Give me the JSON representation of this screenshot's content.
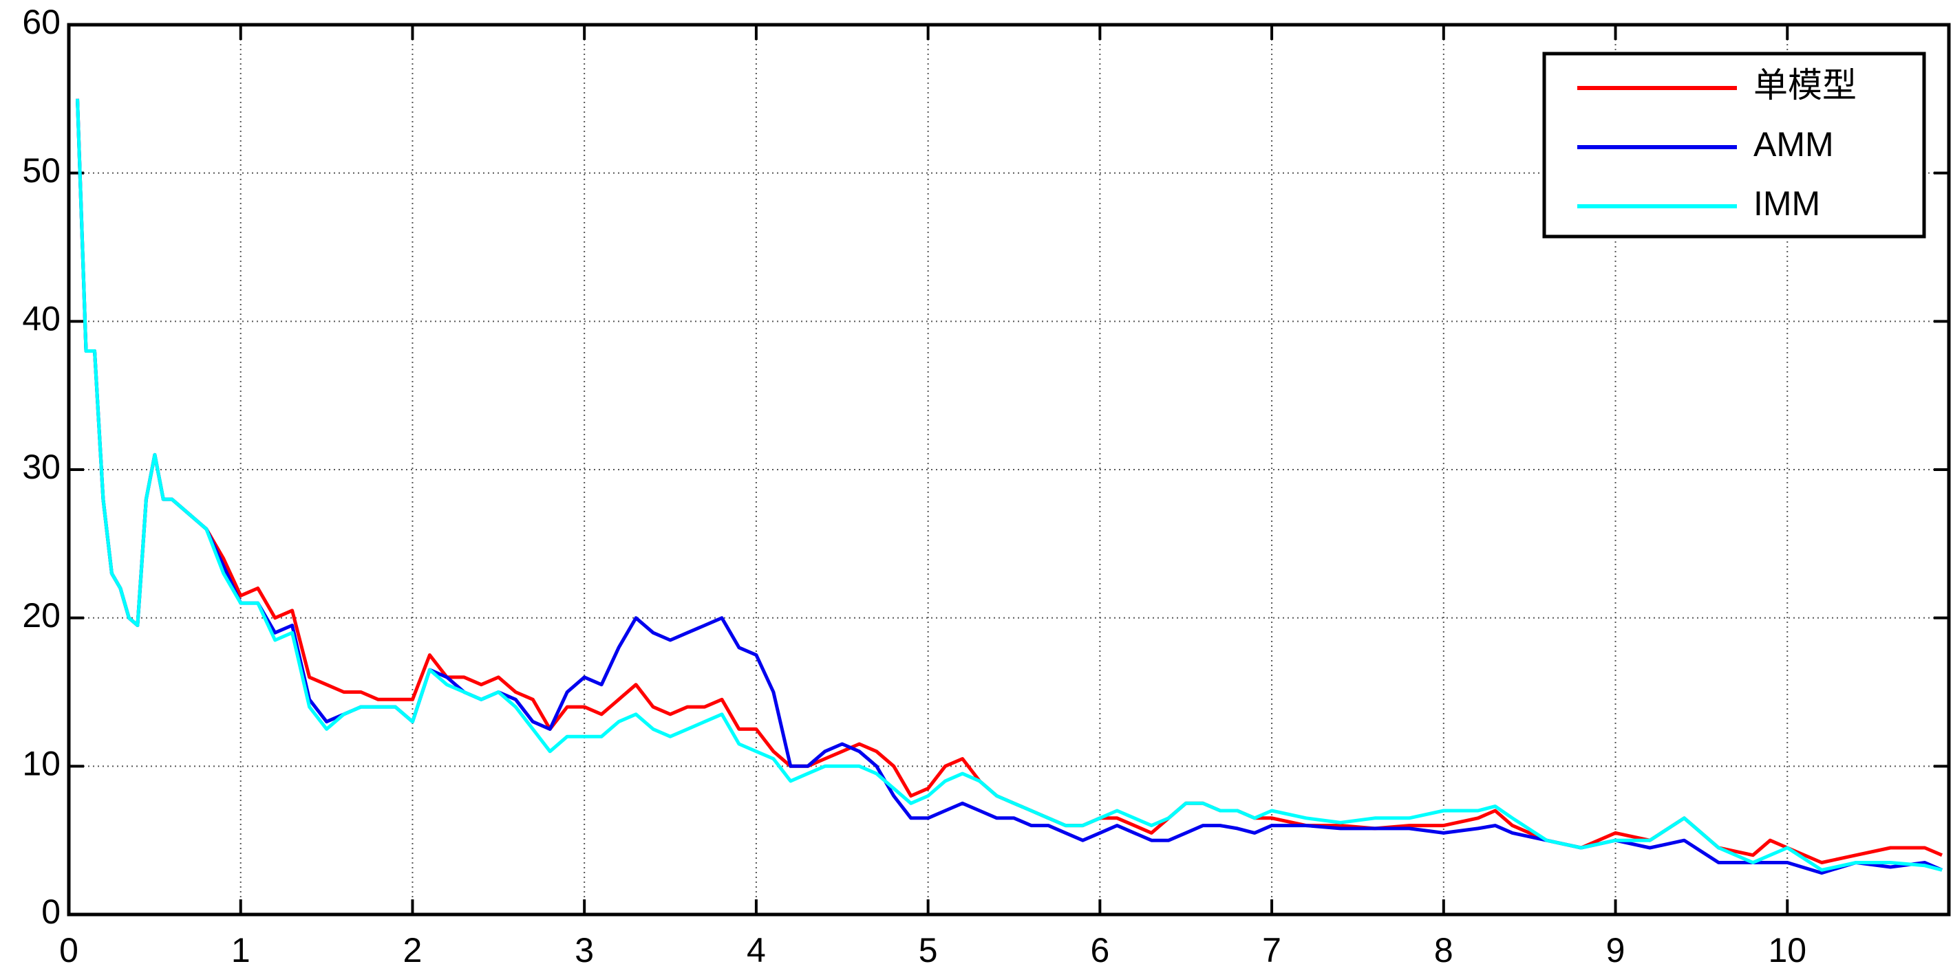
{
  "chart_data": {
    "type": "line",
    "x": [
      0.05,
      0.1,
      0.15,
      0.2,
      0.25,
      0.3,
      0.35,
      0.4,
      0.45,
      0.5,
      0.55,
      0.6,
      0.7,
      0.8,
      0.9,
      1.0,
      1.1,
      1.2,
      1.3,
      1.4,
      1.5,
      1.6,
      1.7,
      1.8,
      1.9,
      2.0,
      2.1,
      2.2,
      2.3,
      2.4,
      2.5,
      2.6,
      2.7,
      2.8,
      2.9,
      3.0,
      3.1,
      3.2,
      3.3,
      3.4,
      3.5,
      3.6,
      3.7,
      3.8,
      3.9,
      4.0,
      4.1,
      4.2,
      4.3,
      4.4,
      4.5,
      4.6,
      4.7,
      4.8,
      4.9,
      5.0,
      5.1,
      5.2,
      5.3,
      5.4,
      5.5,
      5.6,
      5.7,
      5.8,
      5.9,
      6.0,
      6.1,
      6.2,
      6.3,
      6.4,
      6.5,
      6.6,
      6.7,
      6.8,
      6.9,
      7.0,
      7.2,
      7.4,
      7.6,
      7.8,
      8.0,
      8.2,
      8.3,
      8.4,
      8.6,
      8.8,
      9.0,
      9.2,
      9.4,
      9.6,
      9.8,
      9.9,
      10.0,
      10.2,
      10.4,
      10.6,
      10.8,
      10.9
    ],
    "series": [
      {
        "name": "单模型",
        "color": "#ff0000",
        "values": [
          55,
          38,
          38,
          28,
          23,
          22,
          20,
          19.5,
          28,
          31,
          28,
          28,
          27,
          26,
          24,
          21.5,
          22,
          20,
          20.5,
          16,
          15.5,
          15,
          15,
          14.5,
          14.5,
          14.5,
          17.5,
          16,
          16,
          15.5,
          16,
          15,
          14.5,
          12.5,
          14,
          14,
          13.5,
          14.5,
          15.5,
          14,
          13.5,
          14,
          14,
          14.5,
          12.5,
          12.5,
          11,
          10,
          10,
          10.5,
          11,
          11.5,
          11,
          10,
          8,
          8.5,
          10,
          10.5,
          9,
          8,
          7.5,
          7,
          6.5,
          6,
          6,
          6.5,
          6.5,
          6,
          5.5,
          6.5,
          7.5,
          7.5,
          7,
          7,
          6.5,
          6.5,
          6,
          6,
          5.8,
          6,
          6,
          6.5,
          7,
          6,
          5,
          4.5,
          5.5,
          5,
          6.5,
          4.5,
          4,
          5,
          4.5,
          3.5,
          4,
          4.5,
          4.5,
          4
        ]
      },
      {
        "name": "AMM",
        "color": "#0000ee",
        "values": [
          55,
          38,
          38,
          28,
          23,
          22,
          20,
          19.5,
          28,
          31,
          28,
          28,
          27,
          26,
          23.5,
          21,
          21,
          19,
          19.5,
          14.5,
          13,
          13.5,
          14,
          14,
          14,
          13,
          16.5,
          16,
          15,
          14.5,
          15,
          14.5,
          13,
          12.5,
          15,
          16,
          15.5,
          18,
          20,
          19,
          18.5,
          19,
          19.5,
          20,
          18,
          17.5,
          15,
          10,
          10,
          11,
          11.5,
          11,
          10,
          8,
          6.5,
          6.5,
          7,
          7.5,
          7,
          6.5,
          6.5,
          6,
          6,
          5.5,
          5,
          5.5,
          6,
          5.5,
          5,
          5,
          5.5,
          6,
          6,
          5.8,
          5.5,
          6,
          6,
          5.8,
          5.8,
          5.8,
          5.5,
          5.8,
          6,
          5.5,
          5,
          4.5,
          5,
          4.5,
          5,
          3.5,
          3.5,
          3.5,
          3.5,
          2.8,
          3.5,
          3.2,
          3.5,
          3
        ]
      },
      {
        "name": "IMM",
        "color": "#00ffff",
        "values": [
          55,
          38,
          38,
          28,
          23,
          22,
          20,
          19.5,
          28,
          31,
          28,
          28,
          27,
          26,
          23,
          21,
          21,
          18.5,
          19,
          14,
          12.5,
          13.5,
          14,
          14,
          14,
          13,
          16.5,
          15.5,
          15,
          14.5,
          15,
          14,
          12.5,
          11,
          12,
          12,
          12,
          13,
          13.5,
          12.5,
          12,
          12.5,
          13,
          13.5,
          11.5,
          11,
          10.5,
          9,
          9.5,
          10,
          10,
          10,
          9.5,
          8.5,
          7.5,
          8,
          9,
          9.5,
          9,
          8,
          7.5,
          7,
          6.5,
          6,
          6,
          6.5,
          7,
          6.5,
          6,
          6.5,
          7.5,
          7.5,
          7,
          7,
          6.5,
          7,
          6.5,
          6.2,
          6.5,
          6.5,
          7,
          7,
          7.3,
          6.5,
          5,
          4.5,
          5,
          5,
          6.5,
          4.5,
          3.5,
          4,
          4.5,
          3,
          3.5,
          3.5,
          3.3,
          3
        ]
      }
    ],
    "xlim": [
      0,
      10.94
    ],
    "ylim": [
      0,
      60
    ],
    "xticks": [
      0,
      1,
      2,
      3,
      4,
      5,
      6,
      7,
      8,
      9,
      10
    ],
    "yticks": [
      0,
      10,
      20,
      30,
      40,
      50,
      60
    ],
    "grid": true,
    "legend": "upper-right"
  }
}
